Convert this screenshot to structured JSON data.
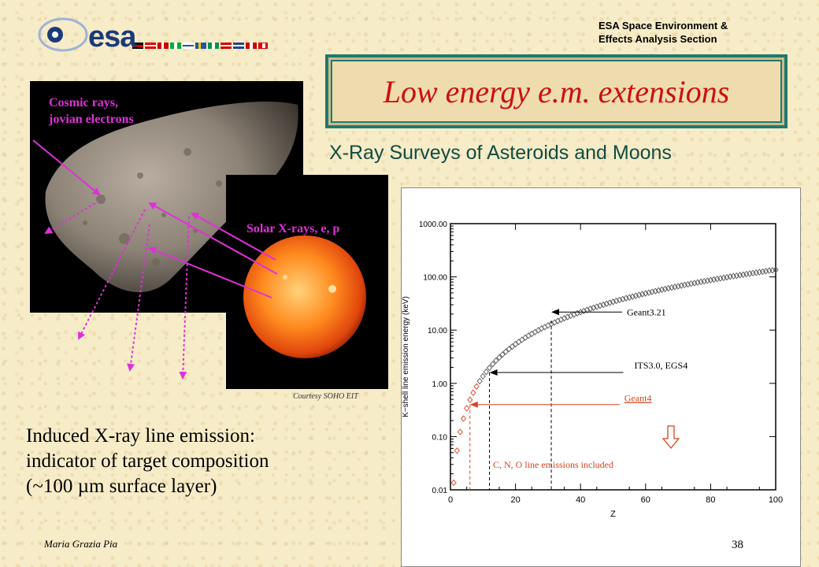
{
  "header": {
    "logo_text": "esa",
    "org_line1": "ESA Space Environment &",
    "org_line2": "Effects Analysis Section",
    "title": "Low energy e.m. extensions",
    "subtitle": "X-Ray Surveys of Asteroids and Moons"
  },
  "figure": {
    "label_cosmic_line1": "Cosmic rays,",
    "label_cosmic_line2": "jovian electrons",
    "label_solar": "Solar X-rays, e, p",
    "credit": "Courtesy SOHO EIT"
  },
  "body": {
    "line1": "Induced X-ray line emission:",
    "line2": "indicator of target composition",
    "line3": "(~100 µm surface layer)"
  },
  "footer": {
    "author": "Maria Grazia Pia",
    "page": "38"
  },
  "colors": {
    "title_red": "#cc1010",
    "teal": "#1f7a70",
    "magenta": "#e030d8",
    "annotation_red": "#d8431e"
  },
  "chart_data": {
    "type": "scatter",
    "title": "",
    "xlabel": "Z",
    "ylabel": "K−shell line emission energy (keV)",
    "xlim": [
      0,
      100
    ],
    "ylim": [
      0.01,
      1000
    ],
    "yscale": "log",
    "x_ticks": [
      0,
      20,
      40,
      60,
      80,
      100
    ],
    "x_tick_labels": [
      "0",
      "20",
      "40",
      "60",
      "80",
      "100"
    ],
    "y_ticks": [
      0.01,
      0.1,
      1,
      10,
      100,
      1000
    ],
    "y_tick_labels": [
      "0.01",
      "0.10",
      "1.00",
      "10.00",
      "100.00",
      "1000.00"
    ],
    "grid": false,
    "x": [
      1,
      2,
      3,
      4,
      5,
      6,
      7,
      8,
      9,
      10,
      11,
      12,
      13,
      14,
      15,
      16,
      17,
      18,
      19,
      20,
      21,
      22,
      23,
      24,
      25,
      26,
      27,
      28,
      29,
      30,
      31,
      32,
      33,
      34,
      35,
      36,
      37,
      38,
      39,
      40,
      41,
      42,
      43,
      44,
      45,
      46,
      47,
      48,
      49,
      50,
      51,
      52,
      53,
      54,
      55,
      56,
      57,
      58,
      59,
      60,
      61,
      62,
      63,
      64,
      65,
      66,
      67,
      68,
      69,
      70,
      71,
      72,
      73,
      74,
      75,
      76,
      77,
      78,
      79,
      80,
      81,
      82,
      83,
      84,
      85,
      86,
      87,
      88,
      89,
      90,
      91,
      92,
      93,
      94,
      95,
      96,
      97,
      98,
      99,
      100
    ],
    "y": [
      0.0136,
      0.0544,
      0.122,
      0.218,
      0.34,
      0.49,
      0.667,
      0.871,
      1.1,
      1.36,
      1.65,
      1.96,
      2.3,
      2.67,
      3.06,
      3.48,
      3.93,
      4.41,
      4.91,
      5.44,
      6.0,
      6.58,
      7.2,
      7.84,
      8.5,
      9.19,
      9.91,
      10.7,
      11.4,
      12.2,
      13.1,
      13.9,
      14.8,
      15.7,
      16.7,
      17.6,
      18.6,
      19.6,
      20.7,
      21.8,
      22.9,
      24.0,
      25.2,
      26.3,
      27.5,
      28.8,
      30.0,
      31.3,
      32.7,
      34.0,
      35.4,
      36.8,
      38.2,
      39.7,
      41.1,
      42.6,
      44.2,
      45.7,
      47.3,
      49.0,
      50.6,
      52.3,
      54.0,
      55.7,
      57.5,
      59.3,
      61.1,
      62.9,
      64.8,
      66.6,
      68.6,
      70.5,
      72.5,
      74.5,
      76.5,
      78.6,
      80.7,
      82.8,
      84.9,
      87.1,
      89.3,
      91.5,
      93.7,
      96.0,
      98.3,
      101.0,
      103.0,
      105.0,
      108.0,
      110.0,
      113.0,
      115.0,
      118.0,
      120.0,
      123.0,
      125.0,
      128.0,
      131.0,
      133.0,
      136.0
    ],
    "annotations": [
      {
        "text": "Geant3.21",
        "x": 31,
        "y": 15,
        "color": "#000000"
      },
      {
        "text": "ITS3.0, EGS4",
        "x": 12,
        "y": 1.6,
        "color": "#000000"
      },
      {
        "text": "Geant4",
        "x": 6,
        "y": 0.4,
        "color": "#d8431e"
      },
      {
        "text": "C, N, O line emissions included",
        "color": "#d8431e"
      }
    ]
  }
}
